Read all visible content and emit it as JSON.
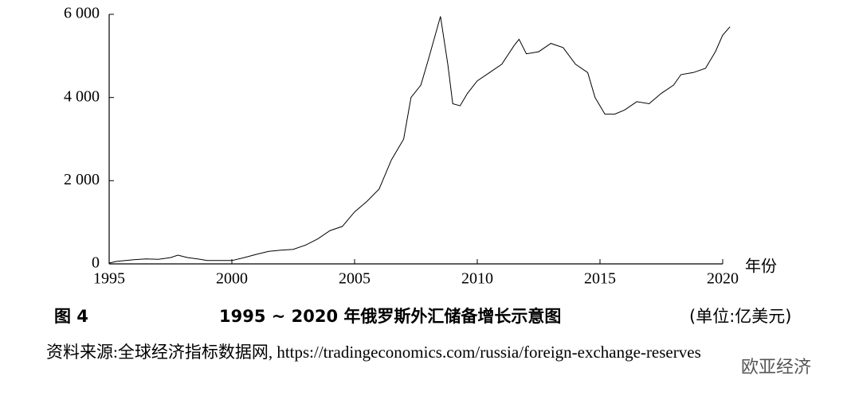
{
  "chart_data": {
    "type": "line",
    "figure_label": "图 4",
    "title": "1995 ~ 2020 年俄罗斯外汇储备增长示意图",
    "unit": "(单位:亿美元)",
    "x_label": "年份",
    "source": "资料来源:全球经济指标数据网, https://tradingeconomics.com/russia/foreign-exchange-reserves",
    "watermark": "欧亚经济",
    "color": "#000000",
    "x": [
      1995.0,
      1995.3,
      1996.0,
      1996.5,
      1997.0,
      1997.5,
      1997.8,
      1998.2,
      1998.6,
      1999.0,
      2000.0,
      2000.5,
      2001.0,
      2001.5,
      2002.0,
      2002.5,
      2003.0,
      2003.5,
      2004.0,
      2004.5,
      2005.0,
      2005.5,
      2006.0,
      2006.5,
      2007.0,
      2007.3,
      2007.7,
      2008.0,
      2008.5,
      2008.8,
      2009.0,
      2009.3,
      2009.6,
      2010.0,
      2010.5,
      2011.0,
      2011.5,
      2011.7,
      2012.0,
      2012.5,
      2013.0,
      2013.5,
      2014.0,
      2014.5,
      2014.8,
      2015.2,
      2015.6,
      2016.0,
      2016.5,
      2017.0,
      2017.5,
      2018.0,
      2018.3,
      2018.8,
      2019.3,
      2019.7,
      2020.0,
      2020.3
    ],
    "values": [
      20,
      60,
      100,
      120,
      110,
      150,
      210,
      150,
      120,
      80,
      80,
      150,
      230,
      300,
      330,
      350,
      450,
      600,
      800,
      900,
      1250,
      1500,
      1800,
      2500,
      3000,
      4000,
      4300,
      4900,
      5950,
      4800,
      3850,
      3800,
      4100,
      4400,
      4600,
      4800,
      5250,
      5400,
      5050,
      5100,
      5300,
      5200,
      4800,
      4600,
      4000,
      3600,
      3600,
      3700,
      3900,
      3850,
      4100,
      4300,
      4550,
      4600,
      4700,
      5100,
      5500,
      5700
    ],
    "xlim": [
      1995,
      2020
    ],
    "xticks": [
      1995,
      2000,
      2005,
      2010,
      2015,
      2020
    ],
    "ylim": [
      0,
      6000
    ],
    "yticks": [
      0,
      {
        "value": 2000,
        "label": "2 000"
      },
      {
        "value": 4000,
        "label": "4 000"
      },
      {
        "value": 6000,
        "label": "6 000"
      }
    ],
    "grid": false
  }
}
